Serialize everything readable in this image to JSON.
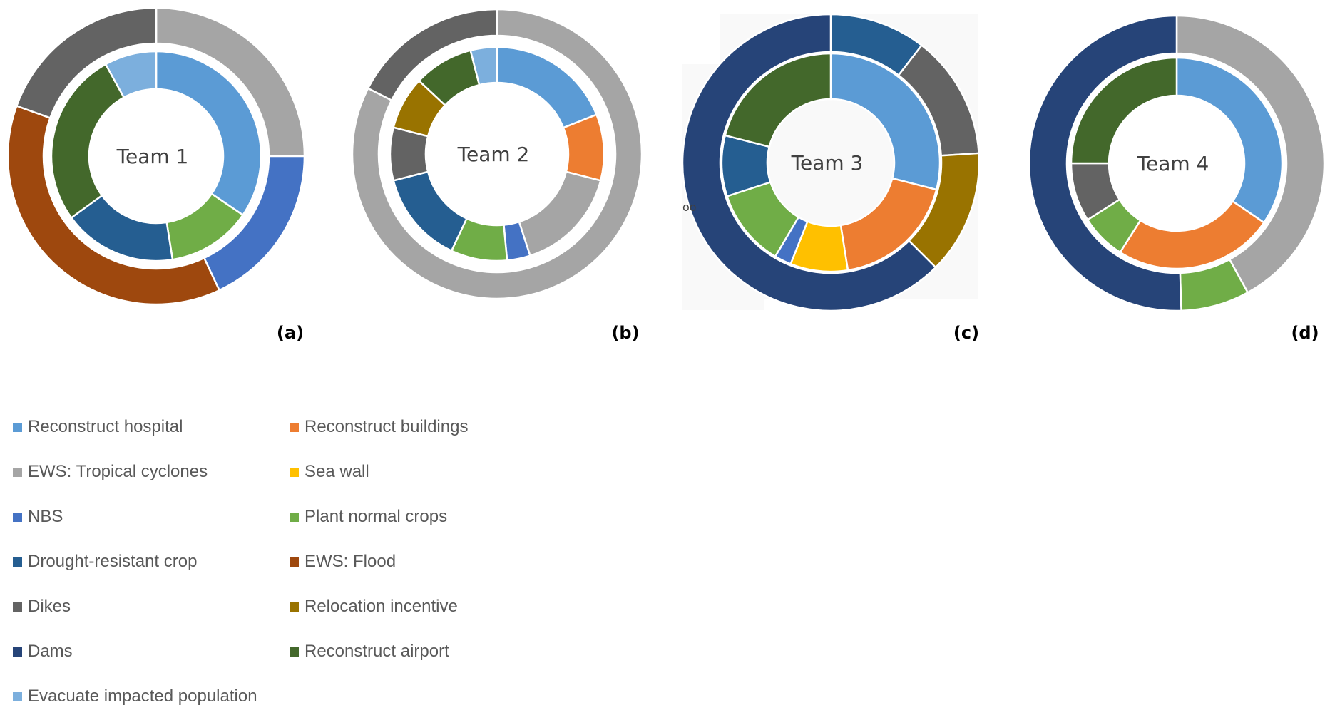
{
  "colors": {
    "Reconstruct hospital": "#5b9bd5",
    "Reconstruct buildings": "#ed7d31",
    "EWS: Tropical cyclones": "#a5a5a5",
    "Sea wall": "#ffc000",
    "NBS": "#4472c4",
    "Plant normal crops": "#70ad47",
    "Drought-resistant crop": "#255e91",
    "EWS: Flood": "#9e480e",
    "Dikes": "#636363",
    "Relocation incentive": "#997300",
    "Dams": "#264478",
    "Reconstruct airport": "#43682b",
    "Evacuate impacted population": "#7cafdd"
  },
  "legend": [
    "Reconstruct hospital",
    "Reconstruct buildings",
    "EWS: Tropical cyclones",
    "Sea wall",
    "NBS",
    "Plant normal crops",
    "Drought-resistant crop",
    "EWS: Flood",
    "Dikes",
    "Relocation incentive",
    "Dams",
    "Reconstruct airport",
    "Evacuate impacted population"
  ],
  "stray_text": "oo",
  "chart_data": [
    {
      "type": "donut",
      "center_label": "Team 1",
      "panel_label": "(a)",
      "inner": [
        {
          "name": "Reconstruct hospital",
          "value": 34.5
        },
        {
          "name": "Plant normal crops",
          "value": 13.0
        },
        {
          "name": "Drought-resistant crop",
          "value": 17.5
        },
        {
          "name": "Reconstruct airport",
          "value": 27.0
        },
        {
          "name": "Evacuate impacted population",
          "value": 8.0
        }
      ],
      "outer": [
        {
          "name": "EWS: Tropical cyclones",
          "value": 25.0
        },
        {
          "name": "NBS",
          "value": 18.0
        },
        {
          "name": "EWS: Flood",
          "value": 37.5
        },
        {
          "name": "Dikes",
          "value": 19.5
        }
      ]
    },
    {
      "type": "donut",
      "center_label": "Team 2",
      "panel_label": "(b)",
      "inner": [
        {
          "name": "Reconstruct hospital",
          "value": 19.0
        },
        {
          "name": "Reconstruct buildings",
          "value": 10.0
        },
        {
          "name": "EWS: Tropical cyclones",
          "value": 16.0
        },
        {
          "name": "NBS",
          "value": 3.5
        },
        {
          "name": "Plant normal crops",
          "value": 8.5
        },
        {
          "name": "Drought-resistant crop",
          "value": 14.0
        },
        {
          "name": "Dikes",
          "value": 8.0
        },
        {
          "name": "Relocation incentive",
          "value": 8.0
        },
        {
          "name": "Reconstruct airport",
          "value": 9.0
        },
        {
          "name": "Evacuate impacted population",
          "value": 4.0
        }
      ],
      "outer": [
        {
          "name": "EWS: Tropical cyclones",
          "value": 82.5
        },
        {
          "name": "Dikes",
          "value": 17.5
        }
      ]
    },
    {
      "type": "donut",
      "center_label": "Team 3",
      "panel_label": "(c)",
      "inner": [
        {
          "name": "Reconstruct hospital",
          "value": 29.0
        },
        {
          "name": "Reconstruct buildings",
          "value": 18.5
        },
        {
          "name": "Sea wall",
          "value": 8.5
        },
        {
          "name": "NBS",
          "value": 2.5
        },
        {
          "name": "Plant normal crops",
          "value": 11.5
        },
        {
          "name": "Drought-resistant crop",
          "value": 9.0
        },
        {
          "name": "Reconstruct airport",
          "value": 21.0
        }
      ],
      "outer": [
        {
          "name": "Drought-resistant crop",
          "value": 10.5
        },
        {
          "name": "Dikes",
          "value": 13.5
        },
        {
          "name": "Relocation incentive",
          "value": 13.5
        },
        {
          "name": "Dams",
          "value": 62.5
        }
      ]
    },
    {
      "type": "donut",
      "center_label": "Team 4",
      "panel_label": "(d)",
      "inner": [
        {
          "name": "Reconstruct hospital",
          "value": 34.5
        },
        {
          "name": "Reconstruct buildings",
          "value": 24.5
        },
        {
          "name": "Plant normal crops",
          "value": 7.0
        },
        {
          "name": "Dikes",
          "value": 9.0
        },
        {
          "name": "Reconstruct airport",
          "value": 25.0
        }
      ],
      "outer": [
        {
          "name": "EWS: Tropical cyclones",
          "value": 42.0
        },
        {
          "name": "Plant normal crops",
          "value": 7.5
        },
        {
          "name": "Dams",
          "value": 50.5
        }
      ]
    }
  ]
}
